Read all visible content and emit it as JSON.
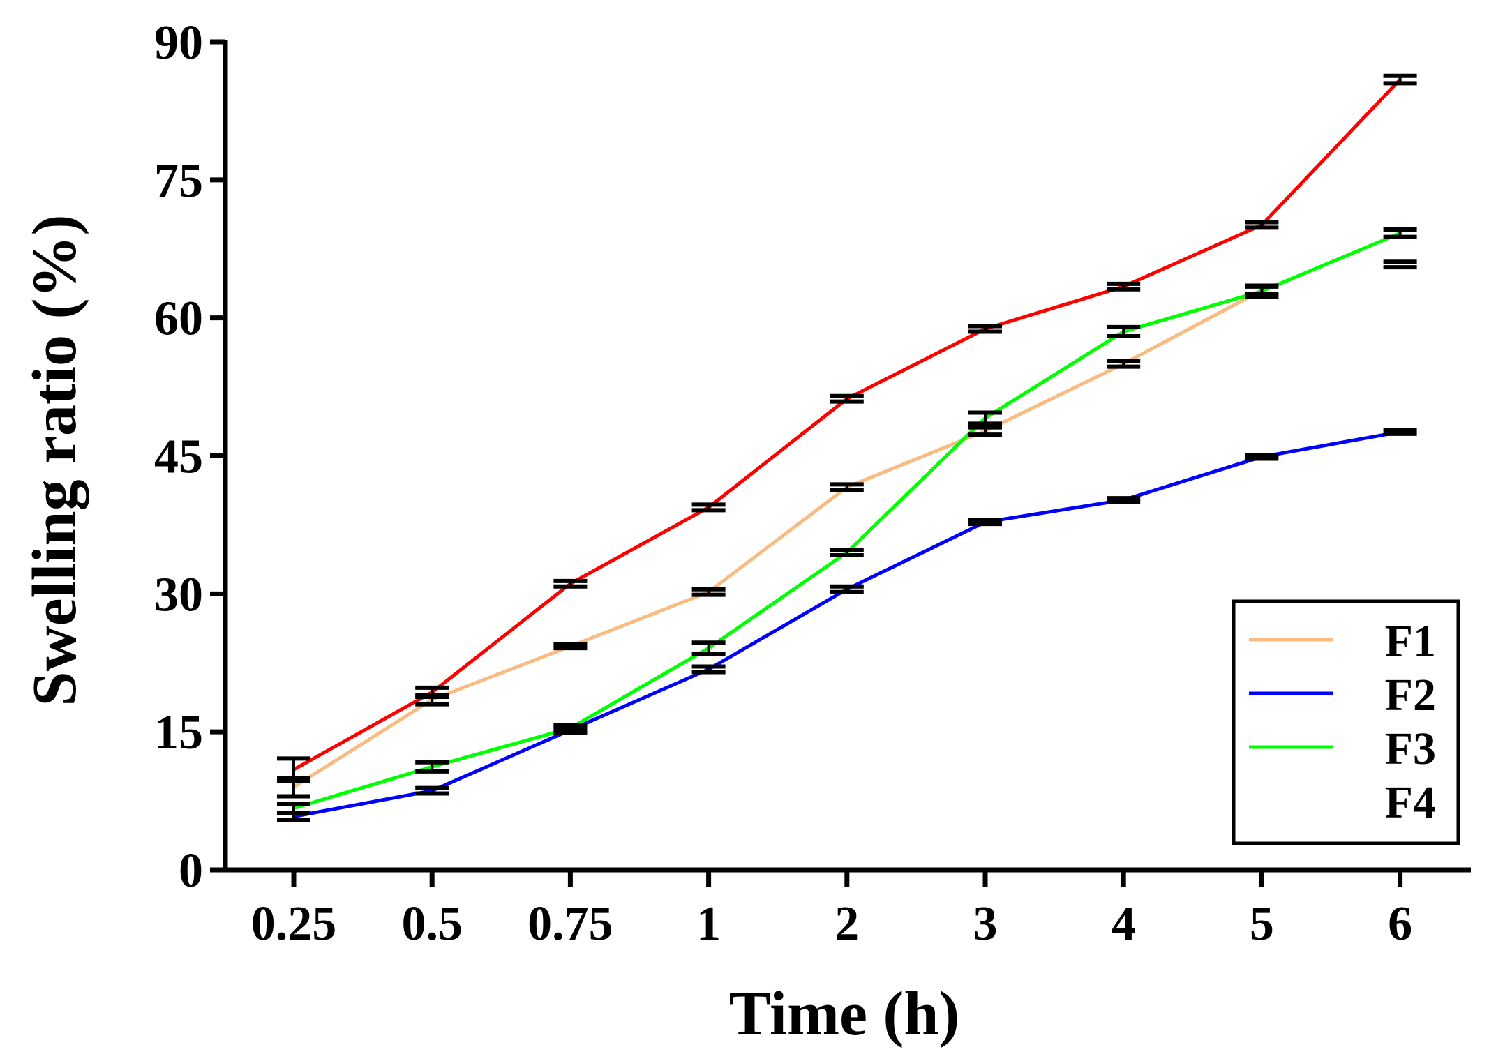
{
  "chart_data": {
    "type": "line",
    "title": "",
    "xlabel": "Time (h)",
    "ylabel": "Swelling ratio (%)",
    "categories": [
      "0.25",
      "0.5",
      "0.75",
      "1",
      "2",
      "3",
      "4",
      "5",
      "6"
    ],
    "ylim": [
      0,
      90
    ],
    "yticks": [
      0,
      15,
      30,
      45,
      60,
      75,
      90
    ],
    "grid": false,
    "legend_position": "bottom-right",
    "series": [
      {
        "name": "F1",
        "color": "#F8BC82",
        "values": [
          9,
          18.5,
          24.3,
          30.2,
          41.6,
          47.7,
          55,
          63,
          null
        ],
        "errors": [
          1.0,
          0.5,
          0.2,
          0.3,
          0.3,
          0.4,
          0.3,
          0.4,
          null
        ]
      },
      {
        "name": "F2",
        "color": "#0000FF",
        "values": [
          5.8,
          8.6,
          15.2,
          21.8,
          30.5,
          37.8,
          40.2,
          44.9,
          47.6
        ],
        "errors": [
          0.4,
          0.3,
          0.3,
          0.3,
          0.3,
          0.2,
          0.2,
          0.2,
          0.2
        ]
      },
      {
        "name": "F3",
        "color": "#00FF00",
        "values": [
          6.7,
          11.2,
          15.4,
          24.1,
          34.5,
          49.1,
          58.5,
          62.9,
          69.2
        ],
        "errors": [
          0.5,
          0.5,
          0.3,
          0.6,
          0.3,
          0.6,
          0.5,
          0.6,
          0.4
        ]
      },
      {
        "name": "F4",
        "color": "#FF0000",
        "values": [
          10.9,
          19.3,
          31.1,
          39.4,
          51.2,
          58.8,
          63.4,
          70.1,
          85.9
        ],
        "errors": [
          1.2,
          0.5,
          0.3,
          0.3,
          0.3,
          0.3,
          0.3,
          0.3,
          0.4
        ]
      }
    ],
    "legend_mark_styles": [
      "line",
      "line",
      "line",
      "none"
    ],
    "errorbar_only_at_end": [
      false,
      false,
      true,
      true
    ],
    "extra_points": {
      "F1_at_6": 65.8
    }
  }
}
